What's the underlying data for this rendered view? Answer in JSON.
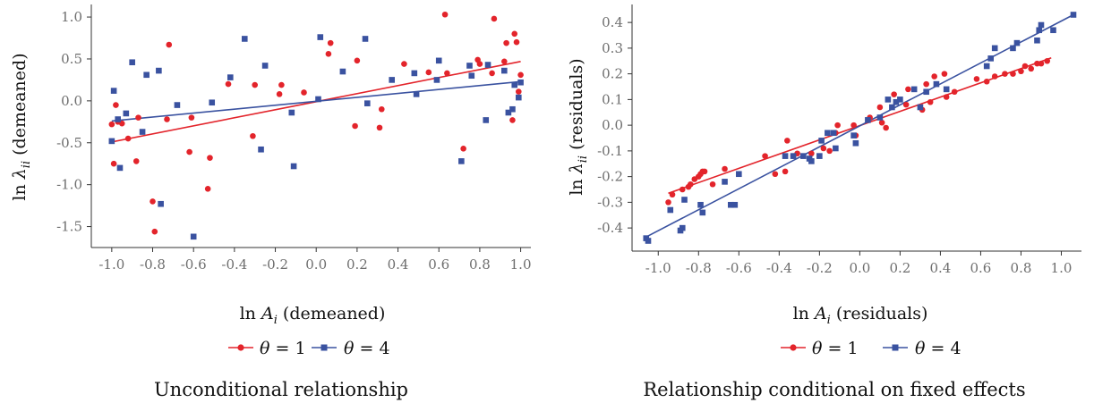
{
  "colors": {
    "theta1": "#e3242b",
    "theta4": "#3a52a0"
  },
  "chart_data": [
    {
      "type": "scatter",
      "caption": "Unconditional relationship",
      "xlabel": "ln A_i (demeaned)",
      "ylabel": "ln λ_ii (demeaned)",
      "xlim": [
        -1.1,
        1.05
      ],
      "ylim": [
        -1.75,
        1.15
      ],
      "xticks": [
        -1.0,
        -0.8,
        -0.6,
        -0.4,
        -0.2,
        0.0,
        0.2,
        0.4,
        0.6,
        0.8,
        1.0
      ],
      "yticks": [
        -1.5,
        -1.0,
        -0.5,
        0.0,
        0.5,
        1.0
      ],
      "xtick_labels": [
        "-1.0",
        "-0.8",
        "-0.6",
        "-0.4",
        "-0.2",
        "0.0",
        "0.2",
        "0.4",
        "0.6",
        "0.8",
        "1.0"
      ],
      "ytick_labels": [
        "-1.5",
        "-1.0",
        "-0.5",
        "0.0",
        "0.5",
        "1.0"
      ],
      "grid": false,
      "series": [
        {
          "name": "θ = 1",
          "marker": "circle",
          "x": [
            -1.0,
            -0.99,
            -0.98,
            -0.97,
            -0.95,
            -0.92,
            -0.88,
            -0.87,
            -0.8,
            -0.79,
            -0.73,
            -0.72,
            -0.62,
            -0.61,
            -0.53,
            -0.52,
            -0.43,
            -0.31,
            -0.3,
            -0.18,
            -0.17,
            -0.06,
            0.06,
            0.07,
            0.19,
            0.2,
            0.31,
            0.32,
            0.43,
            0.55,
            0.63,
            0.64,
            0.72,
            0.79,
            0.8,
            0.86,
            0.87,
            0.92,
            0.93,
            0.96,
            0.97,
            0.98,
            0.99,
            1.0
          ],
          "y": [
            -0.28,
            -0.75,
            -0.05,
            -0.25,
            -0.27,
            -0.45,
            -0.72,
            -0.2,
            -1.2,
            -1.56,
            -0.22,
            0.67,
            -0.61,
            -0.2,
            -1.05,
            -0.68,
            0.2,
            -0.42,
            0.19,
            0.08,
            0.19,
            0.1,
            0.56,
            0.69,
            -0.3,
            0.48,
            -0.32,
            -0.1,
            0.44,
            0.34,
            1.03,
            0.33,
            -0.57,
            0.49,
            0.44,
            0.33,
            0.98,
            0.47,
            0.69,
            -0.23,
            0.8,
            0.7,
            0.11,
            0.31
          ],
          "fit": {
            "x": [
              -1.0,
              1.0
            ],
            "y": [
              -0.49,
              0.47
            ]
          }
        },
        {
          "name": "θ = 4",
          "marker": "square",
          "x": [
            -1.0,
            -0.99,
            -0.97,
            -0.96,
            -0.93,
            -0.9,
            -0.85,
            -0.83,
            -0.77,
            -0.76,
            -0.68,
            -0.6,
            -0.51,
            -0.42,
            -0.35,
            -0.27,
            -0.25,
            -0.12,
            -0.11,
            0.01,
            0.02,
            0.13,
            0.24,
            0.25,
            0.37,
            0.48,
            0.49,
            0.59,
            0.6,
            0.71,
            0.75,
            0.76,
            0.83,
            0.84,
            0.92,
            0.94,
            0.96,
            0.97,
            0.99,
            1.0
          ],
          "y": [
            -0.48,
            0.12,
            -0.22,
            -0.8,
            -0.15,
            0.46,
            -0.37,
            0.31,
            0.36,
            -1.23,
            -0.05,
            -1.62,
            -0.02,
            0.28,
            0.74,
            -0.58,
            0.42,
            -0.14,
            -0.78,
            0.02,
            0.76,
            0.35,
            0.74,
            -0.03,
            0.25,
            0.33,
            0.08,
            0.25,
            0.48,
            -0.72,
            0.42,
            0.3,
            -0.23,
            0.43,
            0.36,
            -0.14,
            -0.1,
            0.19,
            0.04,
            0.22
          ],
          "fit": {
            "x": [
              -1.0,
              1.0
            ],
            "y": [
              -0.24,
              0.23
            ]
          }
        }
      ],
      "legend": {
        "placement": "bottom",
        "labels": [
          "θ = 1",
          "θ = 4"
        ]
      }
    },
    {
      "type": "scatter",
      "caption": "Relationship conditional on fixed effects",
      "xlabel": "ln A_i (residuals)",
      "ylabel": "ln λ_ii (residuals)",
      "xlim": [
        -1.13,
        1.1
      ],
      "ylim": [
        -0.49,
        0.47
      ],
      "xticks": [
        -1.0,
        -0.8,
        -0.6,
        -0.4,
        -0.2,
        0.0,
        0.2,
        0.4,
        0.6,
        0.8,
        1.0
      ],
      "yticks": [
        -0.4,
        -0.3,
        -0.2,
        -0.1,
        0.0,
        0.1,
        0.2,
        0.3,
        0.4
      ],
      "xtick_labels": [
        "-1.0",
        "-0.8",
        "-0.6",
        "-0.4",
        "-0.2",
        "0.0",
        "0.2",
        "0.4",
        "0.6",
        "0.8",
        "1.0"
      ],
      "ytick_labels": [
        "-0.4",
        "-0.3",
        "-0.2",
        "-0.1",
        "0.0",
        "0.1",
        "0.2",
        "0.3",
        "0.4"
      ],
      "grid": false,
      "series": [
        {
          "name": "θ = 1",
          "marker": "circle",
          "x": [
            -0.95,
            -0.93,
            -0.88,
            -0.85,
            -0.84,
            -0.82,
            -0.8,
            -0.79,
            -0.78,
            -0.77,
            -0.73,
            -0.67,
            -0.47,
            -0.42,
            -0.37,
            -0.36,
            -0.33,
            -0.31,
            -0.24,
            -0.18,
            -0.15,
            -0.12,
            -0.11,
            -0.03,
            -0.02,
            0.05,
            0.1,
            0.11,
            0.13,
            0.17,
            0.23,
            0.24,
            0.31,
            0.33,
            0.35,
            0.37,
            0.42,
            0.43,
            0.47,
            0.58,
            0.63,
            0.67,
            0.72,
            0.76,
            0.8,
            0.82,
            0.85,
            0.88,
            0.9,
            0.93
          ],
          "y": [
            -0.3,
            -0.27,
            -0.25,
            -0.24,
            -0.23,
            -0.21,
            -0.2,
            -0.19,
            -0.18,
            -0.18,
            -0.23,
            -0.17,
            -0.12,
            -0.19,
            -0.18,
            -0.06,
            -0.12,
            -0.11,
            -0.11,
            -0.09,
            -0.1,
            -0.03,
            0.0,
            0.0,
            -0.04,
            0.03,
            0.07,
            0.01,
            -0.01,
            0.12,
            0.08,
            0.14,
            0.06,
            0.16,
            0.09,
            0.19,
            0.2,
            0.11,
            0.13,
            0.18,
            0.17,
            0.19,
            0.2,
            0.2,
            0.21,
            0.23,
            0.22,
            0.24,
            0.24,
            0.25
          ],
          "fit": {
            "x": [
              -0.95,
              0.95
            ],
            "y": [
              -0.265,
              0.262
            ]
          }
        },
        {
          "name": "θ = 4",
          "marker": "square",
          "x": [
            -1.06,
            -1.05,
            -0.94,
            -0.89,
            -0.88,
            -0.87,
            -0.79,
            -0.78,
            -0.67,
            -0.64,
            -0.62,
            -0.6,
            -0.37,
            -0.33,
            -0.28,
            -0.25,
            -0.24,
            -0.2,
            -0.19,
            -0.16,
            -0.13,
            -0.12,
            -0.03,
            -0.02,
            0.04,
            0.1,
            0.14,
            0.16,
            0.18,
            0.2,
            0.27,
            0.3,
            0.33,
            0.38,
            0.43,
            0.63,
            0.65,
            0.67,
            0.76,
            0.78,
            0.88,
            0.89,
            0.9,
            0.96,
            1.06
          ],
          "y": [
            -0.44,
            -0.45,
            -0.33,
            -0.41,
            -0.4,
            -0.29,
            -0.31,
            -0.34,
            -0.22,
            -0.31,
            -0.31,
            -0.19,
            -0.12,
            -0.12,
            -0.12,
            -0.13,
            -0.14,
            -0.12,
            -0.06,
            -0.03,
            -0.03,
            -0.09,
            -0.04,
            -0.07,
            0.02,
            0.03,
            0.1,
            0.07,
            0.09,
            0.1,
            0.14,
            0.07,
            0.13,
            0.16,
            0.14,
            0.23,
            0.26,
            0.3,
            0.3,
            0.32,
            0.33,
            0.37,
            0.39,
            0.37,
            0.43
          ],
          "fit": {
            "x": [
              -1.06,
              1.06
            ],
            "y": [
              -0.435,
              0.43
            ]
          }
        }
      ],
      "legend": {
        "placement": "bottom",
        "labels": [
          "θ = 1",
          "θ = 4"
        ]
      }
    }
  ]
}
